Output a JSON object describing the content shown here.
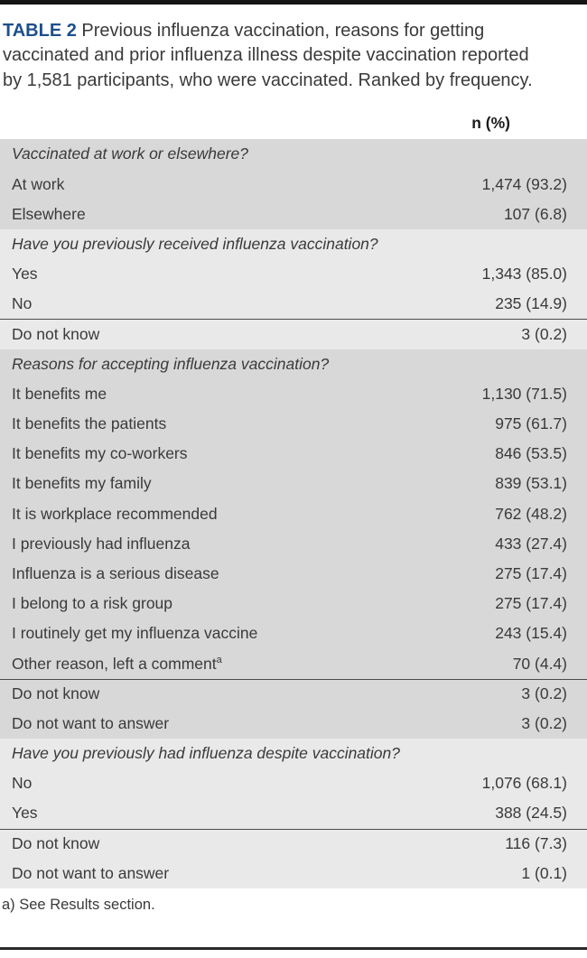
{
  "page": {
    "table_label": "TABLE 2",
    "caption_text": " Previous influenza vaccination, reasons for getting vaccinated and prior influenza illness despite vaccination reported by 1,581 participants, who were vaccinated. Ranked by frequency.",
    "column_header": "n (%)",
    "footnote": "a) See Results section."
  },
  "colors": {
    "accent_blue": "#1e4f8c",
    "body_text": "#3a3a3a",
    "block_dark": "#d8d8d8",
    "block_light": "#e9e9e9",
    "divider_line": "#4a4a4a",
    "top_rule": "#141414",
    "bottom_rule": "#2a2a2a"
  },
  "table": {
    "blocks": [
      {
        "shade": "dark",
        "rows": [
          {
            "type": "section",
            "label": "Vaccinated at work or elsewhere?"
          },
          {
            "type": "data",
            "label": "At work",
            "value": "1,474 (93.2)"
          },
          {
            "type": "data",
            "label": "Elsewhere",
            "value": "107 (6.8)"
          }
        ]
      },
      {
        "shade": "light",
        "rows": [
          {
            "type": "section",
            "label": "Have you previously received influenza vaccination?"
          },
          {
            "type": "data",
            "label": "Yes",
            "value": "1,343 (85.0)"
          },
          {
            "type": "data",
            "label": "No",
            "value": "235 (14.9)"
          },
          {
            "type": "data",
            "label": "Do not know",
            "value": "3 (0.2)",
            "divider_above": true
          }
        ]
      },
      {
        "shade": "dark",
        "rows": [
          {
            "type": "section",
            "label": "Reasons for accepting influenza vaccination?"
          },
          {
            "type": "data",
            "label": "It benefits me",
            "value": "1,130 (71.5)"
          },
          {
            "type": "data",
            "label": "It benefits the patients",
            "value": "975 (61.7)"
          },
          {
            "type": "data",
            "label": "It benefits my co-workers",
            "value": "846 (53.5)"
          },
          {
            "type": "data",
            "label": "It benefits my family",
            "value": "839 (53.1)"
          },
          {
            "type": "data",
            "label": "It is workplace recommended",
            "value": "762 (48.2)"
          },
          {
            "type": "data",
            "label": "I previously had influenza",
            "value": "433 (27.4)"
          },
          {
            "type": "data",
            "label": "Influenza is a serious disease",
            "value": "275 (17.4)"
          },
          {
            "type": "data",
            "label": "I belong to a risk group",
            "value": "275 (17.4)"
          },
          {
            "type": "data",
            "label": "I routinely get my influenza vaccine",
            "value": "243 (15.4)"
          },
          {
            "type": "data",
            "label": "Other reason, left a comment",
            "superscript": "a",
            "value": "70 (4.4)"
          },
          {
            "type": "data",
            "label": "Do not know",
            "value": "3 (0.2)",
            "divider_above": true
          },
          {
            "type": "data",
            "label": "Do not want to answer",
            "value": "3 (0.2)"
          }
        ]
      },
      {
        "shade": "light",
        "rows": [
          {
            "type": "section",
            "label": "Have you previously had influenza despite vaccination?"
          },
          {
            "type": "data",
            "label": "No",
            "value": "1,076 (68.1)"
          },
          {
            "type": "data",
            "label": "Yes",
            "value": "388 (24.5)"
          },
          {
            "type": "data",
            "label": "Do not know",
            "value": "116 (7.3)",
            "divider_above": true
          },
          {
            "type": "data",
            "label": "Do not want to answer",
            "value": "1 (0.1)"
          }
        ]
      }
    ]
  }
}
